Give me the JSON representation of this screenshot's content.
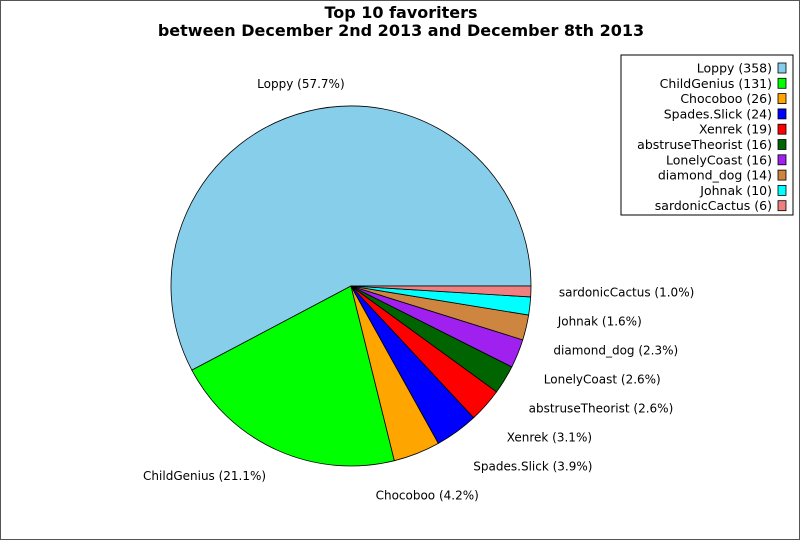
{
  "chart_data": {
    "type": "pie",
    "title": "Top 10 favoriters",
    "subtitle": "between December 2nd 2013 and December 8th 2013",
    "legend_position": "top-right",
    "slices": [
      {
        "name": "Loppy",
        "value": 358,
        "percent": "57.7%",
        "color": "#87ceeb"
      },
      {
        "name": "ChildGenius",
        "value": 131,
        "percent": "21.1%",
        "color": "#00ff00"
      },
      {
        "name": "Chocoboo",
        "value": 26,
        "percent": "4.2%",
        "color": "#ffa500"
      },
      {
        "name": "Spades.Slick",
        "value": 24,
        "percent": "3.9%",
        "color": "#0000ff"
      },
      {
        "name": "Xenrek",
        "value": 19,
        "percent": "3.1%",
        "color": "#ff0000"
      },
      {
        "name": "abstruseTheorist",
        "value": 16,
        "percent": "2.6%",
        "color": "#006400"
      },
      {
        "name": "LonelyCoast",
        "value": 16,
        "percent": "2.6%",
        "color": "#a020f0"
      },
      {
        "name": "diamond_dog",
        "value": 14,
        "percent": "2.3%",
        "color": "#cd853f"
      },
      {
        "name": "Johnak",
        "value": 10,
        "percent": "1.6%",
        "color": "#00ffff"
      },
      {
        "name": "sardonicCactus",
        "value": 6,
        "percent": "1.0%",
        "color": "#f08080"
      }
    ]
  }
}
